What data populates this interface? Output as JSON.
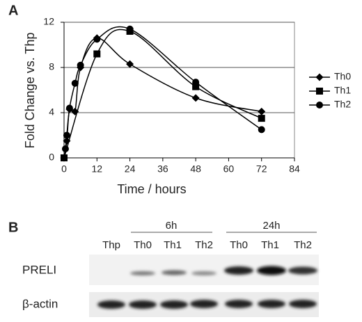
{
  "chart_data": {
    "type": "line",
    "panel": "A",
    "xlabel": "Time / hours",
    "ylabel": "Fold Change vs. Thp",
    "xlim": [
      0,
      84
    ],
    "xticks": [
      0,
      12,
      24,
      36,
      48,
      60,
      72,
      84
    ],
    "ylim": [
      0,
      12
    ],
    "yticks": [
      0,
      4,
      8,
      12
    ],
    "grid": true,
    "legend": "right",
    "series": [
      {
        "name": "Th0",
        "color": "#000000",
        "marker": "diamond",
        "x": [
          0,
          1,
          2,
          4,
          6,
          12,
          24,
          48,
          72
        ],
        "values": [
          0,
          1.5,
          4.3,
          4.1,
          8.0,
          10.6,
          8.3,
          5.3,
          4.1
        ]
      },
      {
        "name": "Th1",
        "color": "#000000",
        "marker": "square",
        "x": [
          0,
          12,
          24,
          48,
          72
        ],
        "values": [
          0,
          9.2,
          11.2,
          6.3,
          3.5
        ]
      },
      {
        "name": "Th2",
        "color": "#000000",
        "marker": "circle",
        "x": [
          0.5,
          1,
          2,
          4,
          6,
          12,
          24,
          48,
          72
        ],
        "values": [
          0.8,
          2.0,
          4.4,
          6.6,
          8.2,
          10.5,
          11.4,
          6.7,
          2.5
        ]
      }
    ]
  },
  "blot": {
    "panel": "B",
    "groups": [
      "6h",
      "24h"
    ],
    "lanes": [
      "Thp",
      "Th0",
      "Th1",
      "Th2",
      "Th0",
      "Th1",
      "Th2"
    ],
    "rows": [
      "PRELI",
      "β-actin"
    ]
  }
}
